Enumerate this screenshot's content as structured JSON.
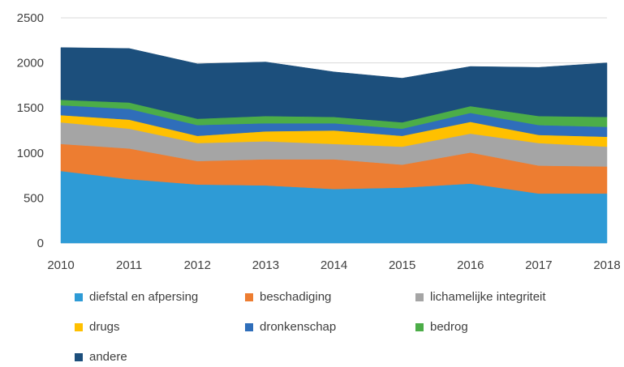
{
  "chart_data": {
    "type": "area",
    "stacked": true,
    "x": [
      "2010",
      "2011",
      "2012",
      "2013",
      "2014",
      "2015",
      "2016",
      "2017",
      "2018"
    ],
    "ylim": [
      0,
      2500
    ],
    "yticks": [
      "0",
      "500",
      "1000",
      "1500",
      "2000",
      "2500"
    ],
    "grid": "horizontal",
    "legend_position": "bottom",
    "series": [
      {
        "name": "diefstal en afpersing",
        "color": "#2E9BD6",
        "values": [
          800,
          710,
          650,
          640,
          600,
          615,
          660,
          550,
          550
        ]
      },
      {
        "name": "beschadiging",
        "color": "#ED7D31",
        "values": [
          300,
          340,
          260,
          290,
          330,
          255,
          345,
          310,
          300
        ]
      },
      {
        "name": "lichamelijke integriteit",
        "color": "#A5A5A5",
        "values": [
          240,
          220,
          200,
          200,
          170,
          200,
          210,
          250,
          220
        ]
      },
      {
        "name": "drugs",
        "color": "#FFC000",
        "values": [
          80,
          100,
          80,
          110,
          150,
          120,
          130,
          90,
          110
        ]
      },
      {
        "name": "dronkenschap",
        "color": "#2F6EBA",
        "values": [
          110,
          120,
          120,
          90,
          80,
          80,
          100,
          110,
          110
        ]
      },
      {
        "name": "bedrog",
        "color": "#4CAD48",
        "values": [
          60,
          70,
          70,
          80,
          70,
          70,
          75,
          100,
          110
        ]
      },
      {
        "name": "andere",
        "color": "#1C4F7C",
        "values": [
          580,
          600,
          610,
          600,
          500,
          490,
          440,
          540,
          600
        ]
      }
    ]
  }
}
